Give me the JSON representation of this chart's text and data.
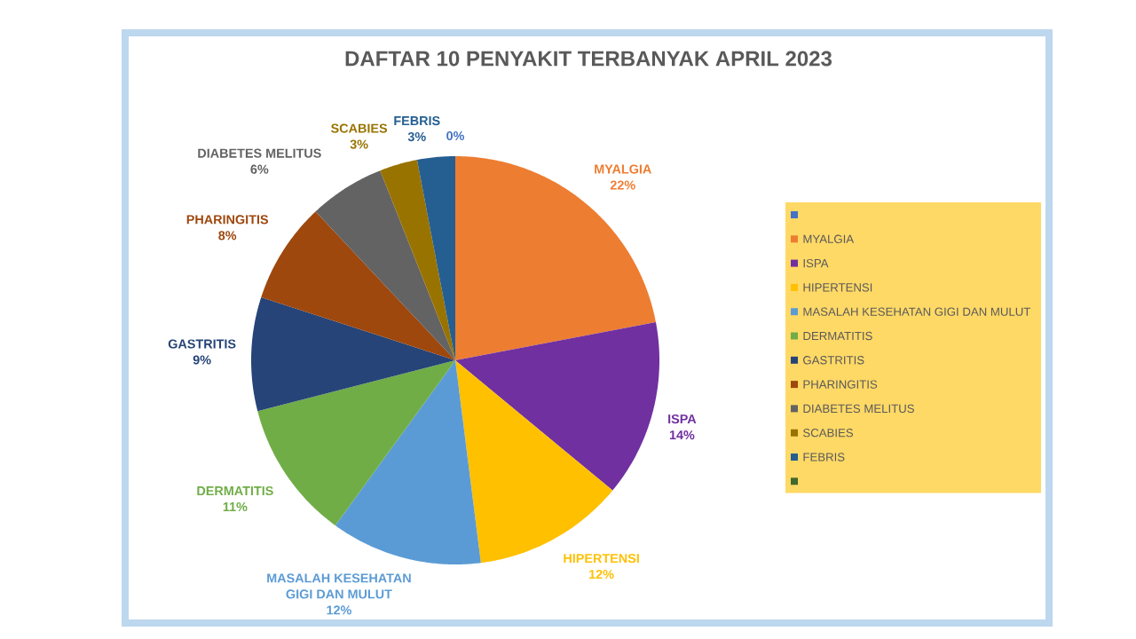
{
  "chart_data": {
    "type": "pie",
    "title": "DAFTAR 10 PENYAKIT TERBANYAK APRIL 2023",
    "categories": [
      null,
      "MYALGIA",
      "ISPA",
      "HIPERTENSI",
      "MASALAH KESEHATAN GIGI DAN MULUT",
      "DERMATITIS",
      "GASTRITIS",
      "PHARINGITIS",
      "DIABETES MELITUS",
      "SCABIES",
      "FEBRIS",
      null
    ],
    "values": [
      0,
      22,
      14,
      12,
      12,
      11,
      9,
      8,
      6,
      3,
      3,
      0
    ],
    "colors": [
      "#4472c4",
      "#ed7d31",
      "#7030a0",
      "#ffc000",
      "#5b9bd5",
      "#70ad47",
      "#264478",
      "#9e480e",
      "#636363",
      "#997300",
      "#255e91",
      "#43682b"
    ],
    "value_labels": [
      "0%",
      "22%",
      "14%",
      "12%",
      "12%",
      "11%",
      "9%",
      "8%",
      "6%",
      "3%",
      "3%",
      null
    ],
    "legend": "right"
  }
}
